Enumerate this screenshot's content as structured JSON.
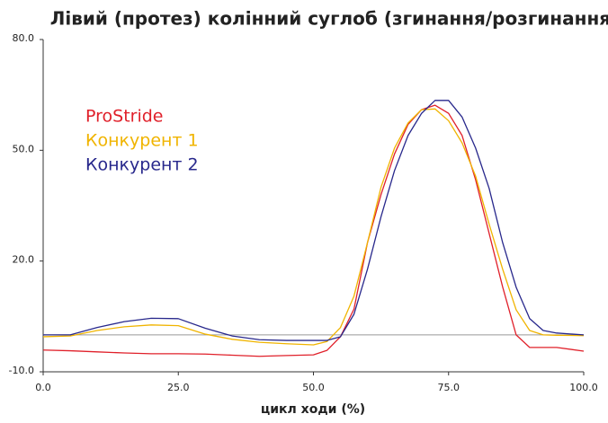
{
  "chart_data": {
    "type": "line",
    "title": "Лівий (протез) колінний суглоб (згинання/розгинання)",
    "x_label": "цикл ходи (%)",
    "x": [
      0,
      5,
      10,
      15,
      20,
      25,
      30,
      35,
      40,
      45,
      50,
      52.5,
      55,
      57.5,
      60,
      62.5,
      65,
      67.5,
      70,
      72.5,
      75,
      77.5,
      80,
      82.5,
      85,
      87.5,
      90,
      92.5,
      95,
      100
    ],
    "series": [
      {
        "name": "ProStride",
        "color": "#e0202a",
        "values": [
          -4.1,
          -4.3,
          -4.6,
          -4.9,
          -5.1,
          -5.1,
          -5.2,
          -5.5,
          -5.8,
          -5.6,
          -5.4,
          -4.2,
          -0.5,
          7,
          25,
          38,
          49,
          57,
          61,
          62.2,
          60,
          54,
          42,
          27.5,
          13,
          0,
          -3.4,
          -3.4,
          -3.4,
          -4.4
        ]
      },
      {
        "name": "Конкурент 1",
        "color": "#f0b400",
        "values": [
          -0.5,
          -0.3,
          1.2,
          2.2,
          2.7,
          2.5,
          0.2,
          -1.2,
          -2,
          -2.4,
          -2.7,
          -1.8,
          2,
          10.5,
          25,
          40,
          50.6,
          57.4,
          61,
          61.2,
          58,
          52,
          43,
          30,
          17.8,
          6.8,
          1.2,
          0,
          -0.1,
          -0.2
        ]
      },
      {
        "name": "Конкурент 2",
        "color": "#28288c",
        "values": [
          0,
          0,
          2,
          3.6,
          4.5,
          4.4,
          1.8,
          -0.3,
          -1.3,
          -1.5,
          -1.5,
          -1.5,
          -0.5,
          5.6,
          17.8,
          32,
          44.5,
          54,
          60,
          63.5,
          63.5,
          59,
          50.6,
          39.7,
          25,
          12.9,
          4.4,
          1.2,
          0.5,
          0
        ]
      }
    ],
    "xlim": [
      0,
      100
    ],
    "xticks": [
      {
        "value": 0,
        "label": "0.0"
      },
      {
        "value": 25,
        "label": "25.0"
      },
      {
        "value": 50,
        "label": "50.0"
      },
      {
        "value": 75,
        "label": "75.0"
      },
      {
        "value": 100,
        "label": "100.0"
      }
    ],
    "ylim": [
      -10,
      80
    ],
    "yticks": [
      {
        "value": -10,
        "label": "-10.0"
      },
      {
        "value": 20,
        "label": "20.0"
      },
      {
        "value": 50,
        "label": "50.0"
      },
      {
        "value": 80,
        "label": "80.0"
      }
    ],
    "legend": "upper left",
    "grid": false
  }
}
